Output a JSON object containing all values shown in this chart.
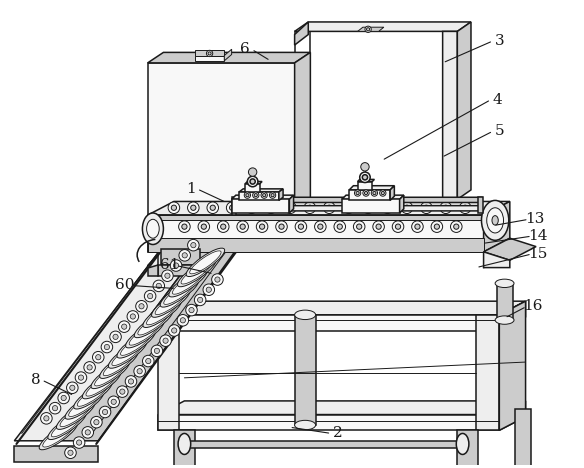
{
  "bg_color": "#ffffff",
  "lc": "#1a1a1a",
  "fill_light": "#eeeeee",
  "fill_mid": "#cccccc",
  "fill_dark": "#aaaaaa",
  "fill_white": "#f8f8f8",
  "figsize": [
    5.84,
    4.68
  ],
  "dpi": 100,
  "labels": [
    [
      "1",
      195,
      178,
      215,
      185,
      240,
      193
    ],
    [
      "2",
      335,
      418,
      305,
      415,
      280,
      412
    ],
    [
      "3",
      490,
      42,
      455,
      55,
      430,
      65
    ],
    [
      "4",
      488,
      98,
      440,
      120,
      415,
      135
    ],
    [
      "5",
      490,
      128,
      455,
      143,
      430,
      152
    ],
    [
      "6",
      248,
      50,
      263,
      58,
      272,
      63
    ],
    [
      "8",
      45,
      368,
      68,
      375,
      82,
      380
    ],
    [
      "13",
      524,
      212,
      498,
      215,
      482,
      217
    ],
    [
      "14",
      527,
      228,
      495,
      232,
      472,
      235
    ],
    [
      "15",
      527,
      244,
      490,
      252,
      465,
      258
    ],
    [
      "16",
      522,
      295,
      505,
      300,
      493,
      305
    ],
    [
      "60",
      135,
      275,
      163,
      278,
      182,
      280
    ],
    [
      "61",
      175,
      258,
      197,
      263,
      215,
      268
    ]
  ]
}
